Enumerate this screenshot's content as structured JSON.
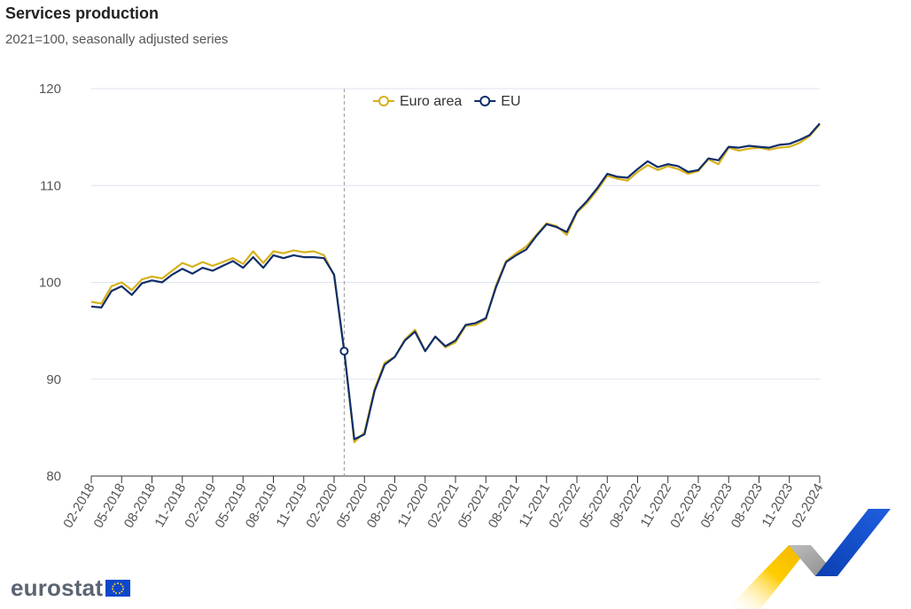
{
  "header": {
    "title": "Services production",
    "subtitle": "2021=100, seasonally adjusted series"
  },
  "brand": {
    "logo_text": "eurostat"
  },
  "colors": {
    "euro_area": "#d6b11d",
    "eu": "#0f2d6b",
    "grid": "#dde3ee",
    "axis_text": "#555555",
    "marker_line": "#9a9a9a"
  },
  "chart_data": {
    "type": "line",
    "title": "Services production",
    "subtitle": "2021=100, seasonally adjusted series",
    "xlabel": "",
    "ylabel": "",
    "ylim": [
      80,
      120
    ],
    "yticks": [
      80,
      90,
      100,
      110,
      120
    ],
    "grid": true,
    "legend_position": "top-center",
    "x_start": "02-2018",
    "x_end": "02-2024",
    "xtick_labels": [
      "02-2018",
      "05-2018",
      "08-2018",
      "11-2018",
      "02-2019",
      "05-2019",
      "08-2019",
      "11-2019",
      "02-2020",
      "05-2020",
      "08-2020",
      "11-2020",
      "02-2021",
      "05-2021",
      "08-2021",
      "11-2021",
      "02-2022",
      "05-2022",
      "08-2022",
      "11-2022",
      "02-2023",
      "05-2023",
      "08-2023",
      "11-2023",
      "02-2024"
    ],
    "highlight": {
      "x": "03-2020",
      "series": "EU",
      "value": 92.9,
      "vertical_line": true
    },
    "series": [
      {
        "name": "Euro area",
        "color": "#d6b11d",
        "values": [
          98.0,
          97.8,
          99.6,
          100.0,
          99.2,
          100.3,
          100.6,
          100.4,
          101.2,
          102.0,
          101.6,
          102.1,
          101.7,
          102.1,
          102.5,
          101.9,
          103.2,
          102.0,
          103.2,
          103.0,
          103.3,
          103.1,
          103.2,
          102.8,
          100.7,
          93.0,
          83.5,
          84.5,
          89.0,
          91.7,
          92.3,
          94.1,
          95.1,
          92.9,
          94.4,
          93.3,
          93.8,
          95.5,
          95.6,
          96.2,
          99.7,
          102.2,
          103.0,
          103.7,
          104.9,
          106.1,
          105.8,
          104.9,
          107.2,
          108.2,
          109.5,
          111.0,
          110.7,
          110.5,
          111.4,
          112.1,
          111.6,
          112.0,
          111.7,
          111.2,
          111.5,
          112.7,
          112.2,
          113.9,
          113.6,
          113.8,
          113.9,
          113.7,
          113.9,
          114.0,
          114.4,
          115.1,
          116.3
        ]
      },
      {
        "name": "EU",
        "color": "#0f2d6b",
        "values": [
          97.5,
          97.4,
          99.1,
          99.6,
          98.7,
          99.9,
          100.2,
          100.0,
          100.8,
          101.4,
          100.9,
          101.5,
          101.2,
          101.7,
          102.2,
          101.5,
          102.6,
          101.5,
          102.8,
          102.5,
          102.8,
          102.6,
          102.6,
          102.5,
          100.8,
          92.9,
          83.8,
          84.3,
          88.8,
          91.5,
          92.3,
          94.0,
          94.9,
          92.9,
          94.4,
          93.4,
          94.0,
          95.6,
          95.8,
          96.3,
          99.5,
          102.1,
          102.8,
          103.4,
          104.8,
          106.0,
          105.7,
          105.2,
          107.3,
          108.4,
          109.7,
          111.2,
          110.9,
          110.8,
          111.7,
          112.5,
          111.9,
          112.2,
          112.0,
          111.4,
          111.6,
          112.8,
          112.6,
          114.0,
          113.9,
          114.1,
          114.0,
          113.9,
          114.2,
          114.3,
          114.7,
          115.2,
          116.4
        ]
      }
    ]
  }
}
